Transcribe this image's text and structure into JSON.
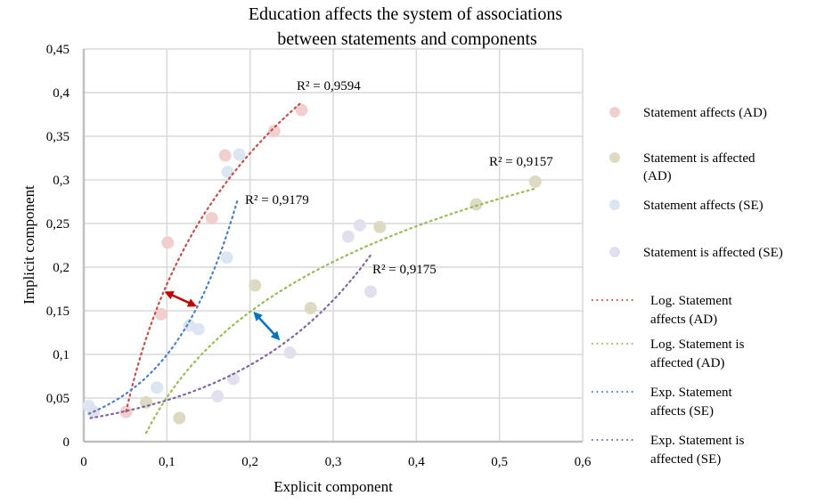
{
  "chart_data": {
    "type": "scatter",
    "title": "Education affects the system of associations between statements and components",
    "title_lines": [
      "Education affects the system of associations",
      "between statements and components"
    ],
    "xlabel": "Explicit component",
    "ylabel": "Implicit component",
    "xlim": [
      0,
      0.6
    ],
    "ylim": [
      0,
      0.45
    ],
    "x_ticks": [
      0,
      0.1,
      0.2,
      0.3,
      0.4,
      0.5,
      0.6
    ],
    "x_tick_labels": [
      "0",
      "0,1",
      "0,2",
      "0,3",
      "0,4",
      "0,5",
      "0,6"
    ],
    "y_ticks": [
      0,
      0.05,
      0.1,
      0.15,
      0.2,
      0.25,
      0.3,
      0.35,
      0.4,
      0.45
    ],
    "y_tick_labels": [
      "0",
      "0,05",
      "0,1",
      "0,15",
      "0,2",
      "0,25",
      "0,3",
      "0,35",
      "0,4",
      "0,45"
    ],
    "grid": true,
    "legend_position": "right",
    "series": [
      {
        "name": "Statement affects (AD)",
        "color": "#f2cfcf",
        "points": [
          [
            0.051,
            0.034
          ],
          [
            0.093,
            0.146
          ],
          [
            0.101,
            0.228
          ],
          [
            0.154,
            0.256
          ],
          [
            0.17,
            0.328
          ],
          [
            0.229,
            0.356
          ],
          [
            0.262,
            0.38
          ]
        ]
      },
      {
        "name": "Statement is affected (AD)",
        "color": "#ddd9c3",
        "points": [
          [
            0.075,
            0.045
          ],
          [
            0.115,
            0.027
          ],
          [
            0.206,
            0.179
          ],
          [
            0.273,
            0.153
          ],
          [
            0.356,
            0.246
          ],
          [
            0.472,
            0.272
          ],
          [
            0.543,
            0.298
          ]
        ]
      },
      {
        "name": "Statement affects (SE)",
        "color": "#dce6f2",
        "points": [
          [
            0.006,
            0.041
          ],
          [
            0.088,
            0.062
          ],
          [
            0.127,
            0.133
          ],
          [
            0.138,
            0.129
          ],
          [
            0.172,
            0.211
          ],
          [
            0.173,
            0.309
          ],
          [
            0.187,
            0.329
          ]
        ]
      },
      {
        "name": "Statement is affected (SE)",
        "color": "#e4dfec",
        "points": [
          [
            0.012,
            0.034
          ],
          [
            0.161,
            0.052
          ],
          [
            0.18,
            0.072
          ],
          [
            0.248,
            0.102
          ],
          [
            0.318,
            0.235
          ],
          [
            0.332,
            0.248
          ],
          [
            0.345,
            0.172
          ]
        ]
      }
    ],
    "trendlines": [
      {
        "name": "Log. Statement affects (AD)",
        "legend_lines": [
          "Log. Statement",
          "affects (AD)"
        ],
        "type": "log",
        "color": "#c0504d",
        "a": 0.2165,
        "b": 0.679,
        "x_range": [
          0.051,
          0.263
        ],
        "r2_label": "R² = 0,9594"
      },
      {
        "name": "Log. Statement is affected (AD)",
        "legend_lines": [
          "Log. Statement is",
          "affected (AD)"
        ],
        "type": "log",
        "color": "#9bbb59",
        "a": 0.1415,
        "b": 0.3765,
        "x_range": [
          0.075,
          0.543
        ],
        "r2_label": "R² = 0,9157"
      },
      {
        "name": "Exp. Statement affects (SE)",
        "legend_lines": [
          "Exp. Statement",
          "affects (SE)"
        ],
        "type": "exp",
        "color": "#4f81bd",
        "a": 0.0298,
        "k": 12.06,
        "x_range": [
          0.006,
          0.185
        ],
        "r2_label": "R² = 0,9179"
      },
      {
        "name": "Exp. Statement is affected (SE)",
        "legend_lines": [
          "Exp. Statement is",
          "affected (SE)"
        ],
        "type": "exp",
        "color": "#8064a2",
        "a": 0.0257,
        "k": 6.14,
        "x_range": [
          0.008,
          0.345
        ],
        "r2_label": "R² = 0,9175"
      }
    ],
    "scatter_legend_lines": [
      [
        "Statement affects (AD)"
      ],
      [
        "Statement is affected",
        "(AD)"
      ],
      [
        "Statement affects (SE)"
      ],
      [
        "Statement is affected (SE)"
      ]
    ],
    "annotations": [
      {
        "type": "double-arrow",
        "color": "#c00000",
        "from": [
          0.097,
          0.172
        ],
        "to": [
          0.136,
          0.155
        ]
      },
      {
        "type": "double-arrow",
        "color": "#0070c0",
        "from": [
          0.204,
          0.149
        ],
        "to": [
          0.236,
          0.116
        ]
      }
    ]
  }
}
